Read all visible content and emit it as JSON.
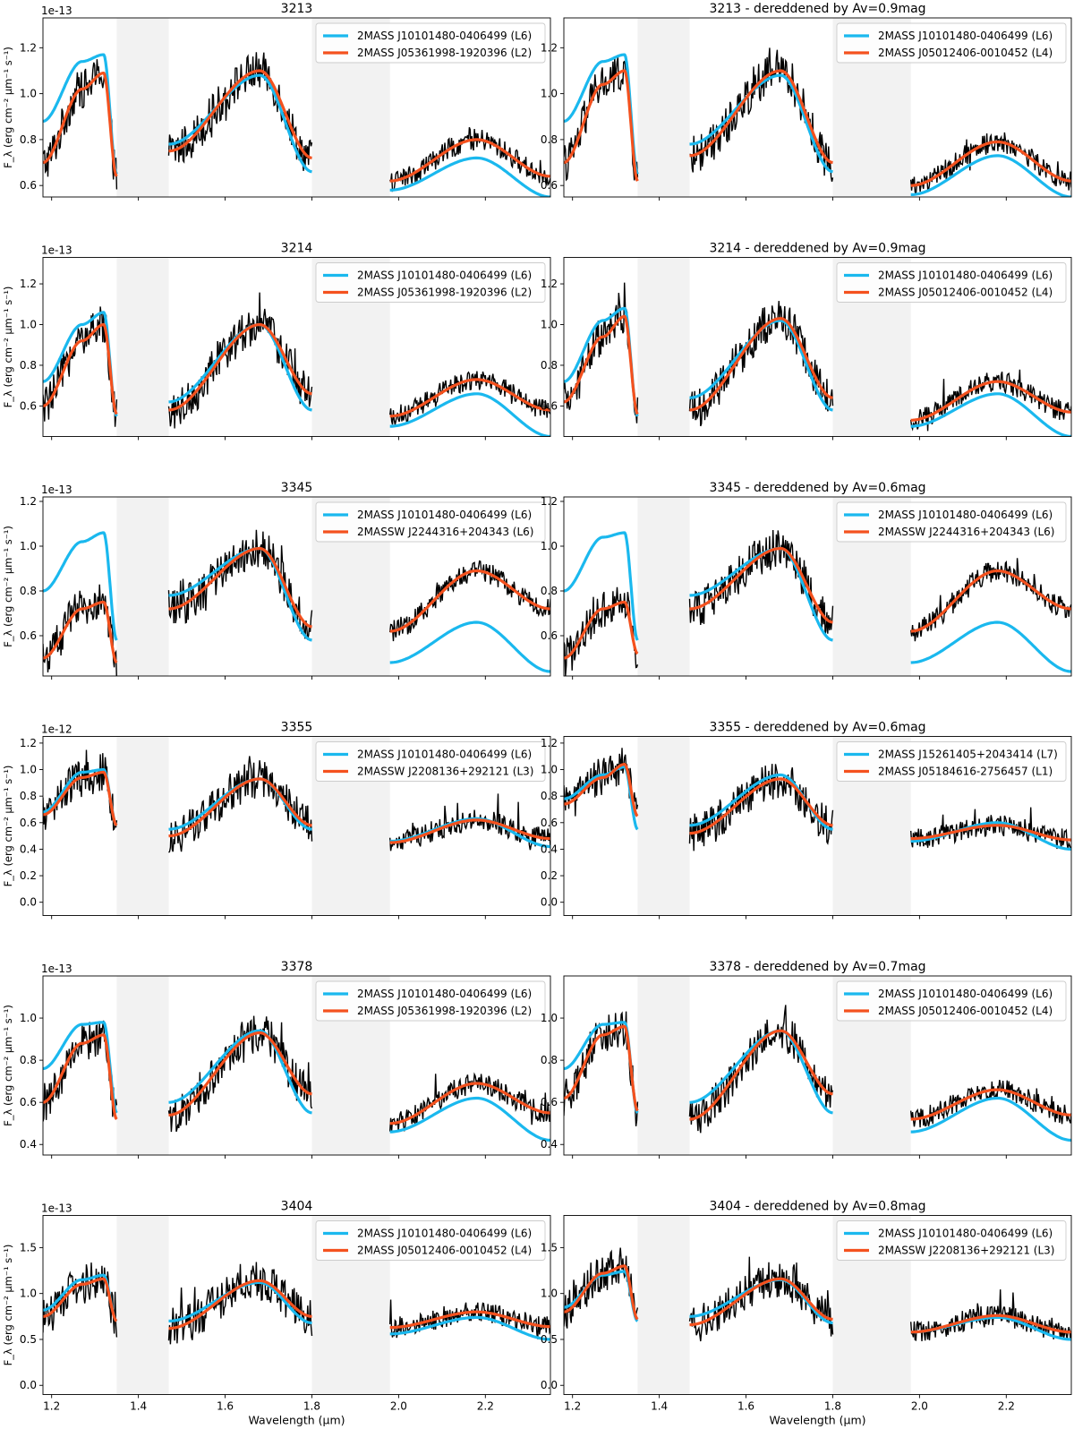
{
  "figure": {
    "xlabel": "Wavelength (μm)",
    "ylabel": "F_λ (erg cm⁻² μm⁻¹ s⁻¹)",
    "xlim": [
      1.18,
      2.35
    ],
    "xticks": [
      "1.2",
      "1.4",
      "1.6",
      "1.8",
      "2.0",
      "2.2"
    ],
    "excluded_bands": [
      [
        1.35,
        1.47
      ],
      [
        1.8,
        1.98
      ]
    ],
    "colors": {
      "observed": "#000000",
      "template1": "#1ab8ee",
      "template2": "#f4511e",
      "band": "#f2f2f2"
    }
  },
  "chart_data": [
    {
      "type": "line",
      "title": "3213",
      "offset_text": "1e-13",
      "ylim": [
        0.55,
        1.33
      ],
      "yticks": [
        0.6,
        0.8,
        1.0,
        1.2
      ],
      "series": [
        {
          "name": "2MASS J10101480-0406499 (L6)",
          "role": "template1",
          "y": [
            0.88,
            1.14,
            1.17,
            0.65,
            0.78,
            1.08,
            0.66,
            0.58,
            0.72,
            0.55
          ]
        },
        {
          "name": "2MASS J05361998-1920396 (L2)",
          "role": "template2",
          "y": [
            0.7,
            1.02,
            1.09,
            0.64,
            0.75,
            1.1,
            0.72,
            0.62,
            0.8,
            0.64
          ]
        }
      ]
    },
    {
      "type": "line",
      "title": "3213 - dereddened by Av=0.9mag",
      "offset_text": "",
      "ylim": [
        0.55,
        1.33
      ],
      "yticks": [
        0.6,
        0.8,
        1.0,
        1.2
      ],
      "series": [
        {
          "name": "2MASS J10101480-0406499 (L6)",
          "role": "template1",
          "y": [
            0.88,
            1.14,
            1.17,
            0.65,
            0.78,
            1.08,
            0.66,
            0.56,
            0.73,
            0.55
          ]
        },
        {
          "name": "2MASS J05012406-0010452 (L4)",
          "role": "template2",
          "y": [
            0.7,
            1.04,
            1.1,
            0.62,
            0.73,
            1.1,
            0.7,
            0.6,
            0.79,
            0.62
          ]
        }
      ]
    },
    {
      "type": "line",
      "title": "3214",
      "offset_text": "1e-13",
      "ylim": [
        0.45,
        1.33
      ],
      "yticks": [
        0.6,
        0.8,
        1.0,
        1.2
      ],
      "series": [
        {
          "name": "2MASS J10101480-0406499 (L6)",
          "role": "template1",
          "y": [
            0.72,
            1.0,
            1.06,
            0.55,
            0.62,
            1.0,
            0.58,
            0.5,
            0.66,
            0.45
          ]
        },
        {
          "name": "2MASS J05361998-1920396 (L2)",
          "role": "template2",
          "y": [
            0.6,
            0.92,
            1.0,
            0.56,
            0.58,
            1.0,
            0.66,
            0.55,
            0.73,
            0.58
          ]
        }
      ]
    },
    {
      "type": "line",
      "title": "3214 - dereddened by Av=0.9mag",
      "offset_text": "",
      "ylim": [
        0.45,
        1.33
      ],
      "yticks": [
        0.6,
        0.8,
        1.0,
        1.2
      ],
      "series": [
        {
          "name": "2MASS J10101480-0406499 (L6)",
          "role": "template1",
          "y": [
            0.72,
            1.02,
            1.08,
            0.55,
            0.64,
            1.02,
            0.58,
            0.5,
            0.66,
            0.45
          ]
        },
        {
          "name": "2MASS J05012406-0010452 (L4)",
          "role": "template2",
          "y": [
            0.62,
            0.94,
            1.04,
            0.56,
            0.58,
            1.03,
            0.64,
            0.53,
            0.72,
            0.57
          ]
        }
      ]
    },
    {
      "type": "line",
      "title": "3345",
      "offset_text": "1e-13",
      "ylim": [
        0.42,
        1.22
      ],
      "yticks": [
        0.6,
        0.8,
        1.0,
        1.2
      ],
      "series": [
        {
          "name": "2MASS J10101480-0406499 (L6)",
          "role": "template1",
          "y": [
            0.8,
            1.02,
            1.06,
            0.58,
            0.78,
            0.99,
            0.58,
            0.48,
            0.66,
            0.44
          ]
        },
        {
          "name": "2MASSW J2244316+204343 (L6)",
          "role": "template2",
          "y": [
            0.5,
            0.72,
            0.75,
            0.48,
            0.72,
            0.99,
            0.64,
            0.62,
            0.89,
            0.72
          ]
        }
      ]
    },
    {
      "type": "line",
      "title": "3345 - dereddened by Av=0.6mag",
      "offset_text": "",
      "ylim": [
        0.42,
        1.22
      ],
      "yticks": [
        0.6,
        0.8,
        1.0,
        1.2
      ],
      "series": [
        {
          "name": "2MASS J10101480-0406499 (L6)",
          "role": "template1",
          "y": [
            0.8,
            1.04,
            1.06,
            0.58,
            0.78,
            0.99,
            0.58,
            0.48,
            0.66,
            0.44
          ]
        },
        {
          "name": "2MASSW J2244316+204343 (L6)",
          "role": "template2",
          "y": [
            0.5,
            0.72,
            0.75,
            0.52,
            0.72,
            0.99,
            0.66,
            0.62,
            0.89,
            0.72
          ]
        }
      ]
    },
    {
      "type": "line",
      "title": "3355",
      "offset_text": "1e-12",
      "ylim": [
        -0.1,
        1.25
      ],
      "yticks": [
        0.0,
        0.2,
        0.4,
        0.6,
        0.8,
        1.0,
        1.2
      ],
      "series": [
        {
          "name": "2MASS J10101480-0406499 (L6)",
          "role": "template1",
          "y": [
            0.68,
            0.98,
            1.0,
            0.58,
            0.55,
            0.93,
            0.55,
            0.46,
            0.63,
            0.42
          ]
        },
        {
          "name": "2MASSW J2208136+292121 (L3)",
          "role": "template2",
          "y": [
            0.66,
            0.94,
            0.98,
            0.58,
            0.5,
            0.93,
            0.58,
            0.45,
            0.62,
            0.48
          ]
        }
      ]
    },
    {
      "type": "line",
      "title": "3355 - dereddened by Av=0.6mag",
      "offset_text": "",
      "ylim": [
        -0.1,
        1.25
      ],
      "yticks": [
        0.0,
        0.2,
        0.4,
        0.6,
        0.8,
        1.0,
        1.2
      ],
      "series": [
        {
          "name": "2MASS J15261405+2043414 (L7)",
          "role": "template1",
          "y": [
            0.78,
            0.96,
            1.02,
            0.55,
            0.58,
            0.96,
            0.55,
            0.46,
            0.6,
            0.4
          ]
        },
        {
          "name": "2MASS J05184616-2756457 (L1)",
          "role": "template2",
          "y": [
            0.74,
            0.94,
            1.04,
            0.65,
            0.52,
            0.93,
            0.58,
            0.48,
            0.58,
            0.47
          ]
        }
      ]
    },
    {
      "type": "line",
      "title": "3378",
      "offset_text": "1e-13",
      "ylim": [
        0.35,
        1.2
      ],
      "yticks": [
        0.4,
        0.6,
        0.8,
        1.0
      ],
      "series": [
        {
          "name": "2MASS J10101480-0406499 (L6)",
          "role": "template1",
          "y": [
            0.76,
            0.97,
            0.98,
            0.55,
            0.6,
            0.94,
            0.55,
            0.46,
            0.62,
            0.42
          ]
        },
        {
          "name": "2MASS J05361998-1920396 (L2)",
          "role": "template2",
          "y": [
            0.6,
            0.88,
            0.92,
            0.52,
            0.54,
            0.93,
            0.64,
            0.5,
            0.69,
            0.55
          ]
        }
      ]
    },
    {
      "type": "line",
      "title": "3378 - dereddened by Av=0.7mag",
      "offset_text": "",
      "ylim": [
        0.35,
        1.2
      ],
      "yticks": [
        0.4,
        0.6,
        0.8,
        1.0
      ],
      "series": [
        {
          "name": "2MASS J10101480-0406499 (L6)",
          "role": "template1",
          "y": [
            0.76,
            0.97,
            0.98,
            0.55,
            0.6,
            0.94,
            0.55,
            0.46,
            0.62,
            0.42
          ]
        },
        {
          "name": "2MASS J05012406-0010452 (L4)",
          "role": "template2",
          "y": [
            0.62,
            0.92,
            0.96,
            0.56,
            0.52,
            0.94,
            0.64,
            0.52,
            0.66,
            0.54
          ]
        }
      ]
    },
    {
      "type": "line",
      "title": "3404",
      "offset_text": "1e-13",
      "ylim": [
        -0.1,
        1.85
      ],
      "yticks": [
        0.0,
        0.5,
        1.0,
        1.5
      ],
      "series": [
        {
          "name": "2MASS J10101480-0406499 (L6)",
          "role": "template1",
          "y": [
            0.82,
            1.15,
            1.2,
            0.7,
            0.7,
            1.12,
            0.68,
            0.56,
            0.74,
            0.5
          ]
        },
        {
          "name": "2MASS J05012406-0010452 (L4)",
          "role": "template2",
          "y": [
            0.75,
            1.1,
            1.16,
            0.7,
            0.62,
            1.14,
            0.75,
            0.63,
            0.8,
            0.64
          ]
        }
      ]
    },
    {
      "type": "line",
      "title": "3404 - dereddened by Av=0.8mag",
      "offset_text": "",
      "ylim": [
        -0.1,
        1.85
      ],
      "yticks": [
        0.0,
        0.5,
        1.0,
        1.5
      ],
      "series": [
        {
          "name": "2MASS J10101480-0406499 (L6)",
          "role": "template1",
          "y": [
            0.85,
            1.2,
            1.24,
            0.7,
            0.75,
            1.15,
            0.68,
            0.58,
            0.74,
            0.5
          ]
        },
        {
          "name": "2MASSW J2208136+292121 (L3)",
          "role": "template2",
          "y": [
            0.8,
            1.22,
            1.3,
            0.72,
            0.66,
            1.16,
            0.72,
            0.58,
            0.76,
            0.58
          ]
        }
      ]
    }
  ]
}
